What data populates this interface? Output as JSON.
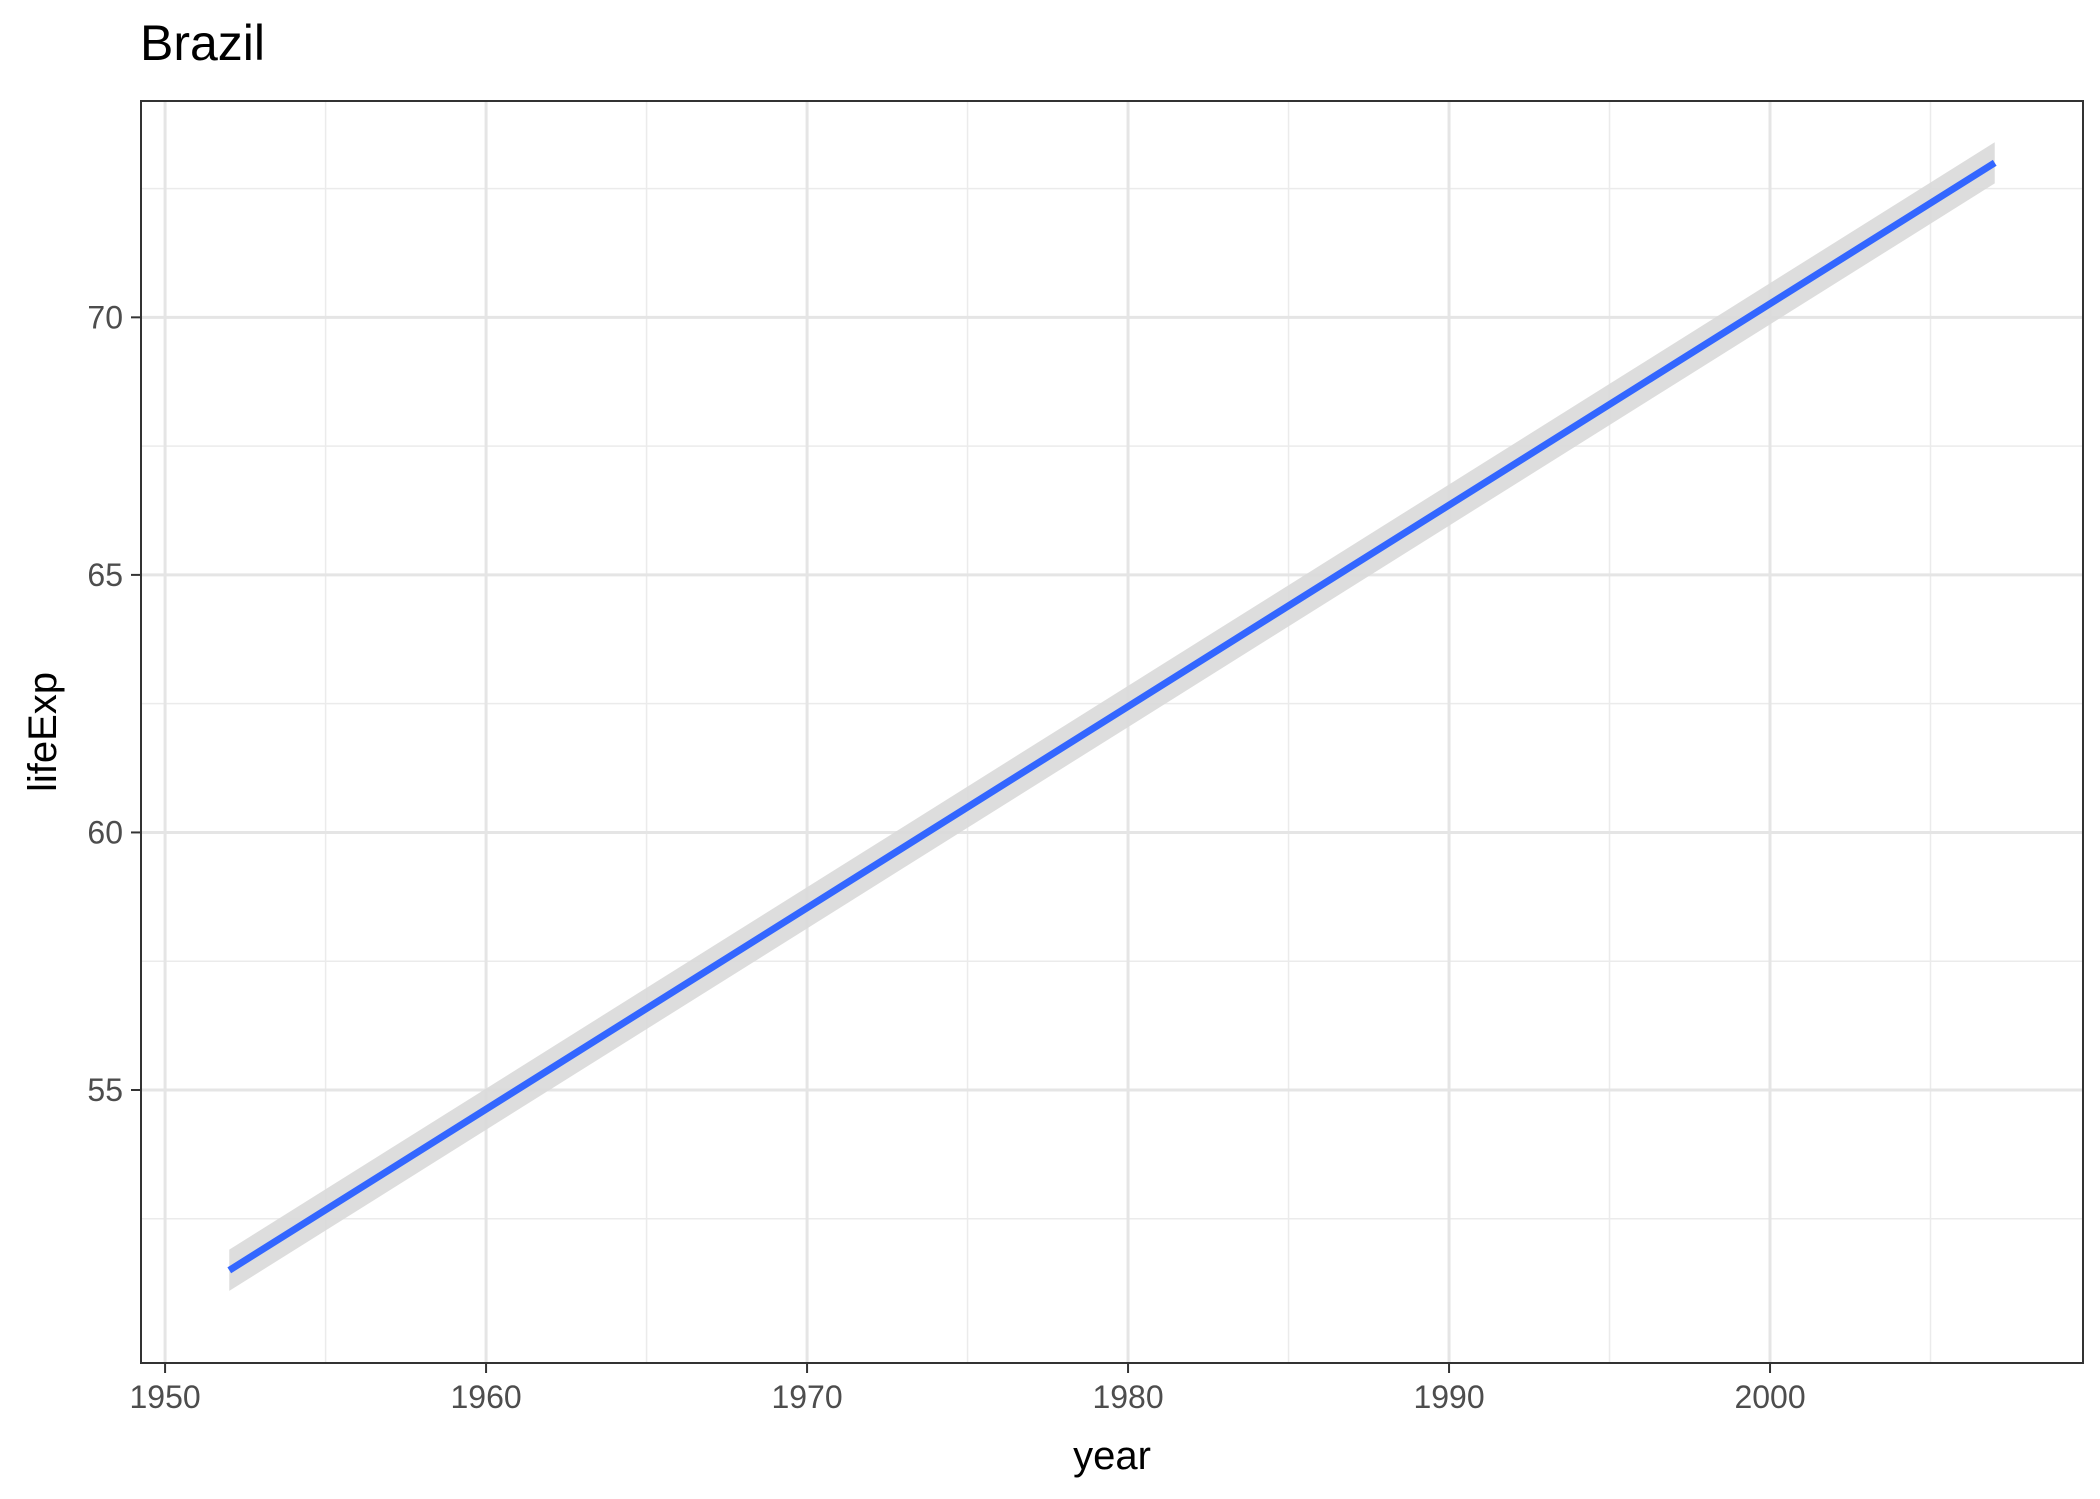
{
  "chart_data": {
    "type": "line",
    "title": "Brazil",
    "xlabel": "year",
    "ylabel": "lifeExp",
    "xlim": [
      1949.25,
      2009.75
    ],
    "ylim": [
      49.7,
      74.2
    ],
    "x_ticks": [
      1950,
      1960,
      1970,
      1980,
      1990,
      2000
    ],
    "x_minor_ticks": [
      1955,
      1965,
      1975,
      1985,
      1995,
      2005
    ],
    "y_ticks": [
      55,
      60,
      65,
      70
    ],
    "y_minor_ticks": [
      52.5,
      57.5,
      62.5,
      67.5,
      72.5
    ],
    "grid": true,
    "series": [
      {
        "fit": "linear",
        "x": [
          1952,
          2007
        ],
        "y": [
          51.5,
          73.0
        ],
        "ci_lower": [
          51.1,
          72.6
        ],
        "ci_upper": [
          51.9,
          73.4
        ],
        "color": "#3366ff",
        "ribbon_color": "#d9d9d9"
      }
    ]
  }
}
